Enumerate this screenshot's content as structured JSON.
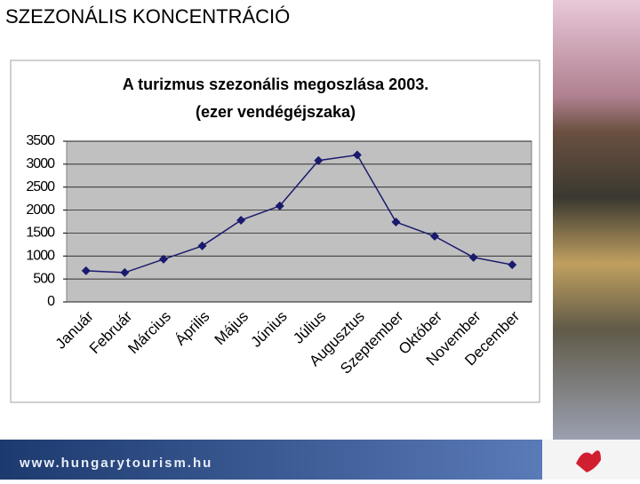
{
  "slide": {
    "title": "SZEZONÁLIS KONCENTRÁCIÓ",
    "footer": "www.hungarytourism.hu"
  },
  "chart_data": {
    "type": "line",
    "title": "A turizmus szezonális megoszlása 2003.",
    "subtitle": "(ezer vendégéjszaka)",
    "categories": [
      "Január",
      "Február",
      "Március",
      "Április",
      "Május",
      "Június",
      "Július",
      "Augusztus",
      "Szeptember",
      "Október",
      "November",
      "December"
    ],
    "values": [
      680,
      640,
      930,
      1220,
      1780,
      2090,
      3080,
      3200,
      1740,
      1430,
      970,
      810
    ],
    "color": "#1a1a6e",
    "ylim": [
      0,
      3500
    ],
    "yticks": [
      0,
      500,
      1000,
      1500,
      2000,
      2500,
      3000,
      3500
    ],
    "grid": true
  }
}
